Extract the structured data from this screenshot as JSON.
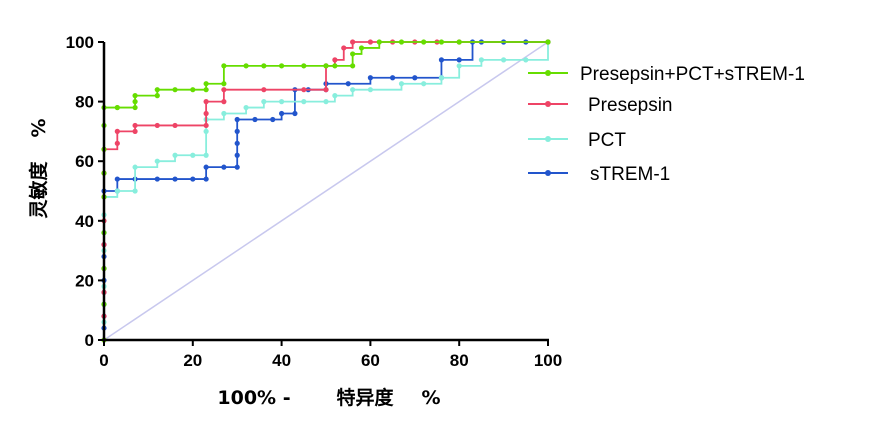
{
  "chart_data": {
    "type": "line",
    "xlabel_left": "100% -",
    "xlabel_right": "特异度",
    "xlabel_unit": "%",
    "ylabel": "灵敏度",
    "ylabel_unit": "%",
    "xlim": [
      0,
      100
    ],
    "ylim": [
      0,
      100
    ],
    "xticks": [
      0,
      20,
      40,
      60,
      80,
      100
    ],
    "yticks": [
      0,
      20,
      40,
      60,
      80,
      100
    ],
    "grid": false,
    "legend_position": "right",
    "reference_line": {
      "color": "#c8c8ee",
      "x": [
        0,
        100
      ],
      "y": [
        0,
        100
      ]
    },
    "series": [
      {
        "name": "Presepsin+PCT+sTREM-1",
        "color": "#66dd00",
        "x": [
          0,
          0,
          0,
          0,
          0,
          0,
          0,
          0,
          0,
          3,
          3,
          7,
          7,
          7,
          12,
          12,
          16,
          20,
          23,
          23,
          27,
          27,
          32,
          36,
          40,
          45,
          50,
          52,
          56,
          56,
          58,
          62,
          67,
          72,
          76,
          80,
          100
        ],
        "y": [
          0,
          12,
          24,
          36,
          48,
          56,
          64,
          72,
          78,
          78,
          78,
          78,
          80,
          82,
          82,
          84,
          84,
          84,
          84,
          86,
          86,
          92,
          92,
          92,
          92,
          92,
          92,
          92,
          92,
          96,
          98,
          100,
          100,
          100,
          100,
          100,
          100
        ]
      },
      {
        "name": "Presepsin",
        "color": "#ee4466",
        "x": [
          0,
          0,
          0,
          0,
          0,
          0,
          0,
          0,
          0,
          3,
          3,
          7,
          7,
          12,
          16,
          23,
          23,
          23,
          27,
          27,
          36,
          45,
          50,
          50,
          52,
          54,
          56,
          60,
          65,
          70,
          75,
          80,
          100
        ],
        "y": [
          0,
          8,
          16,
          24,
          32,
          40,
          48,
          56,
          64,
          66,
          70,
          70,
          72,
          72,
          72,
          72,
          76,
          80,
          80,
          84,
          84,
          84,
          84,
          92,
          94,
          98,
          100,
          100,
          100,
          100,
          100,
          100,
          100
        ]
      },
      {
        "name": "PCT",
        "color": "#88eedd",
        "x": [
          0,
          0,
          0,
          0,
          0,
          0,
          0,
          0,
          0,
          3,
          7,
          7,
          12,
          16,
          20,
          23,
          23,
          23,
          27,
          32,
          36,
          40,
          45,
          50,
          52,
          56,
          60,
          67,
          72,
          76,
          80,
          85,
          90,
          95,
          100
        ],
        "y": [
          0,
          6,
          12,
          18,
          24,
          30,
          36,
          42,
          48,
          50,
          50,
          58,
          60,
          62,
          62,
          62,
          70,
          74,
          76,
          78,
          80,
          80,
          80,
          80,
          82,
          84,
          84,
          86,
          86,
          88,
          92,
          94,
          94,
          94,
          100
        ]
      },
      {
        "name": "sTREM-1",
        "color": "#2255cc",
        "x": [
          0,
          0,
          0,
          0,
          0,
          0,
          0,
          0,
          0,
          0,
          0,
          3,
          3,
          7,
          12,
          16,
          20,
          23,
          23,
          27,
          30,
          30,
          30,
          30,
          30,
          34,
          38,
          40,
          43,
          43,
          46,
          50,
          50,
          55,
          60,
          65,
          70,
          76,
          76,
          80,
          83,
          85,
          90,
          95,
          100
        ],
        "y": [
          0,
          4,
          8,
          12,
          16,
          20,
          24,
          28,
          32,
          36,
          50,
          50,
          54,
          54,
          54,
          54,
          54,
          54,
          58,
          58,
          58,
          62,
          66,
          70,
          74,
          74,
          74,
          76,
          76,
          84,
          84,
          84,
          86,
          86,
          88,
          88,
          88,
          88,
          94,
          94,
          100,
          100,
          100,
          100,
          100
        ]
      }
    ]
  }
}
